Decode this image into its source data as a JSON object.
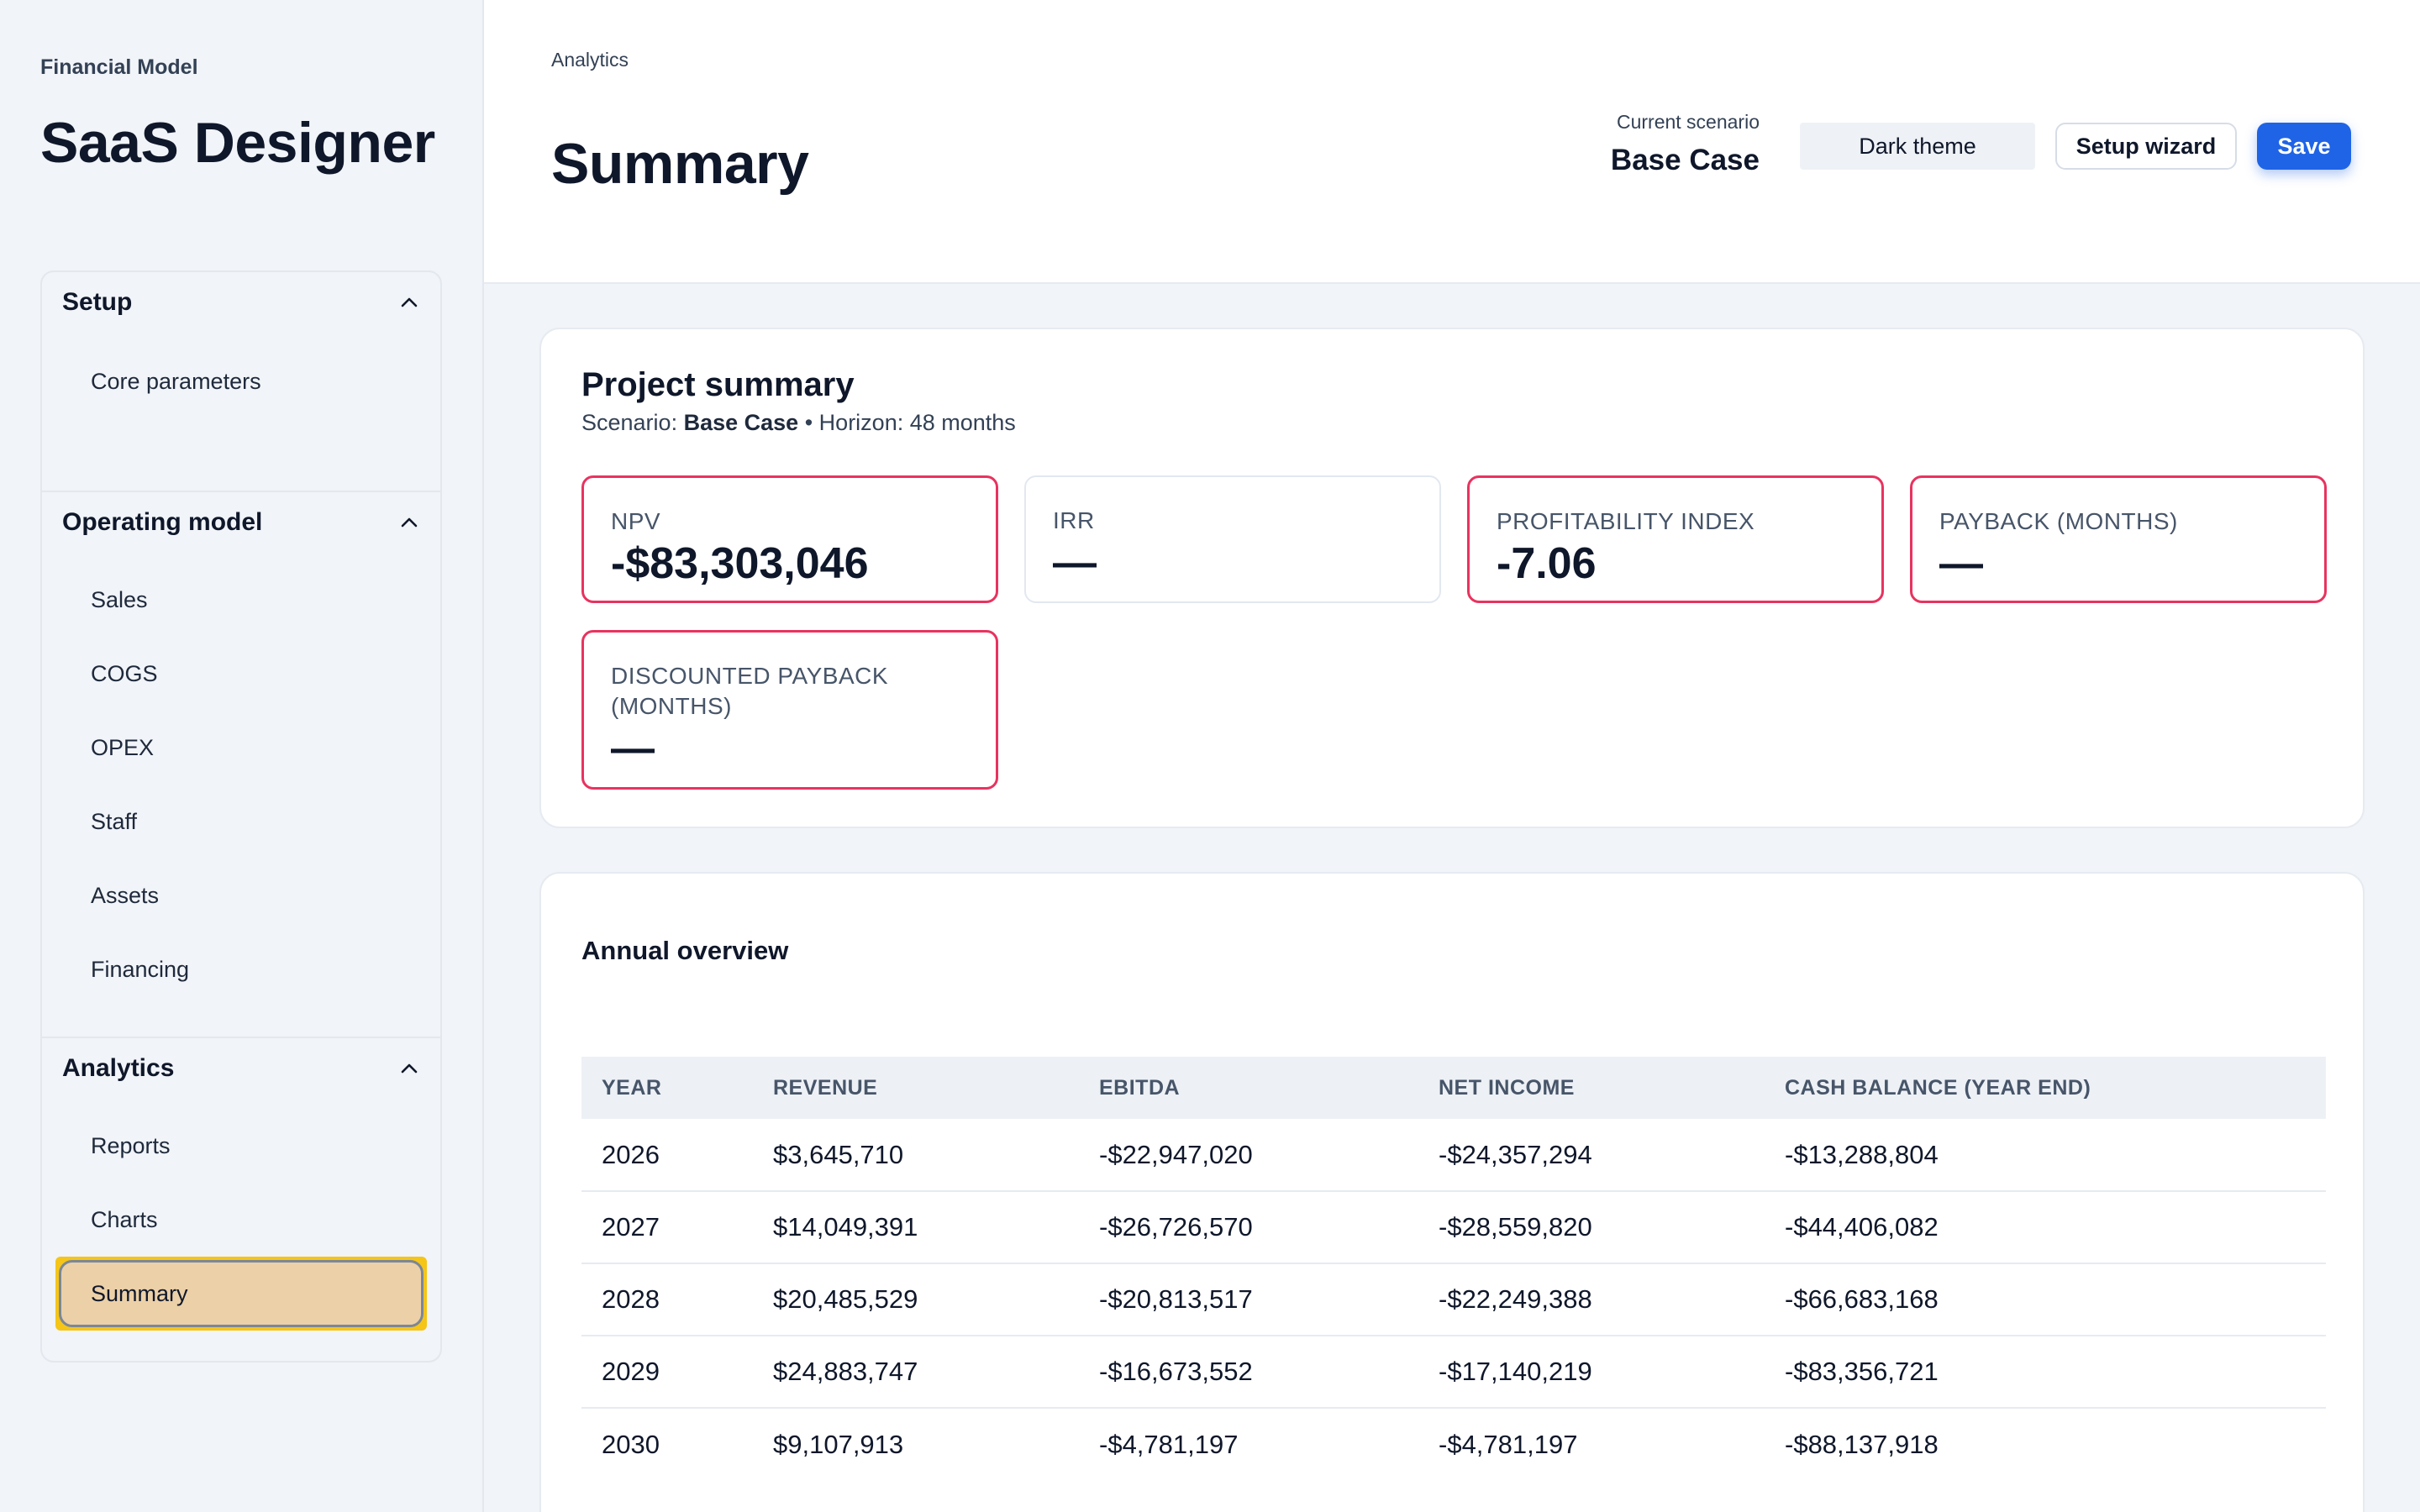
{
  "sidebar": {
    "kicker": "Financial Model",
    "title": "SaaS Designer",
    "groups": [
      {
        "title": "Setup",
        "expanded": true,
        "items": [
          "Core parameters"
        ]
      },
      {
        "title": "Operating model",
        "expanded": true,
        "items": [
          "Sales",
          "COGS",
          "OPEX",
          "Staff",
          "Assets",
          "Financing"
        ]
      },
      {
        "title": "Analytics",
        "expanded": true,
        "items": [
          "Reports",
          "Charts",
          "Summary"
        ],
        "active": "Summary"
      }
    ]
  },
  "header": {
    "breadcrumb": "Analytics",
    "page_title": "Summary",
    "scenario_label": "Current scenario",
    "scenario_name": "Base Case",
    "buttons": {
      "theme": "Dark theme",
      "wizard": "Setup wizard",
      "save": "Save"
    }
  },
  "project_summary": {
    "title": "Project summary",
    "scenario_prefix": "Scenario:",
    "scenario_name": "Base Case",
    "horizon": "• Horizon: 48 months",
    "kpis": [
      {
        "label": "NPV",
        "value": "-$83,303,046",
        "alert": true
      },
      {
        "label": "IRR",
        "value": "—",
        "alert": false
      },
      {
        "label": "PROFITABILITY INDEX",
        "value": "-7.06",
        "alert": true
      },
      {
        "label": "PAYBACK (MONTHS)",
        "value": "—",
        "alert": true
      },
      {
        "label": "DISCOUNTED PAYBACK (MONTHS)",
        "value": "—",
        "alert": true
      }
    ]
  },
  "annual_overview": {
    "title": "Annual overview",
    "columns": [
      "YEAR",
      "REVENUE",
      "EBITDA",
      "NET INCOME",
      "CASH BALANCE (YEAR END)"
    ],
    "rows": [
      [
        "2026",
        "$3,645,710",
        "-$22,947,020",
        "-$24,357,294",
        "-$13,288,804"
      ],
      [
        "2027",
        "$14,049,391",
        "-$26,726,570",
        "-$28,559,820",
        "-$44,406,082"
      ],
      [
        "2028",
        "$20,485,529",
        "-$20,813,517",
        "-$22,249,388",
        "-$66,683,168"
      ],
      [
        "2029",
        "$24,883,747",
        "-$16,673,552",
        "-$17,140,219",
        "-$83,356,721"
      ],
      [
        "2030",
        "$9,107,913",
        "-$4,781,197",
        "-$4,781,197",
        "-$88,137,918"
      ]
    ]
  },
  "colors": {
    "accent": "#1f64e6",
    "alert_border": "#e8335f",
    "active_item": "#ecd0a7",
    "focus_ring": "#f5c518"
  },
  "icons": {
    "group_toggle": "chevron-up-icon"
  }
}
